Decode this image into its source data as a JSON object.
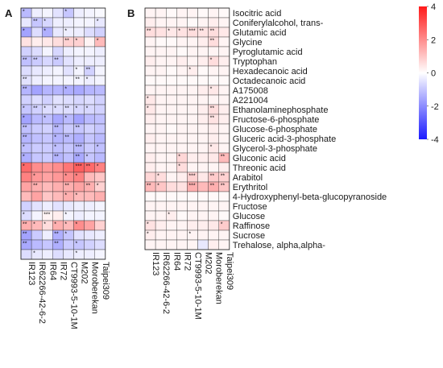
{
  "chart_data": [
    {
      "panel": "A",
      "type": "heatmap",
      "columns": [
        "IR123",
        "IR62266-42-6-2",
        "IR64",
        "IR72",
        "CT9993-5-10-1M",
        "M202",
        "Moroberekan",
        "Taipei309"
      ],
      "values": [
        [
          -1.2,
          -0.3,
          -0.2,
          -0.5,
          -1.0,
          -0.3,
          -0.2,
          -0.1
        ],
        [
          -0.4,
          -1.0,
          -0.7,
          -0.3,
          -0.3,
          -0.2,
          -0.2,
          -0.4
        ],
        [
          -1.6,
          -0.6,
          -1.4,
          -0.4,
          -0.3,
          -0.3,
          -0.6,
          -0.8
        ],
        [
          0.5,
          0.3,
          0.4,
          0.6,
          0.8,
          0.8,
          0.2,
          1.2
        ],
        [
          -0.8,
          -0.6,
          -0.2,
          -0.7,
          -0.3,
          -0.2,
          -0.2,
          -0.3
        ],
        [
          -1.1,
          -0.9,
          -0.7,
          -0.9,
          -0.5,
          -0.3,
          -0.3,
          -0.3
        ],
        [
          -0.6,
          -0.4,
          -0.3,
          -0.2,
          -0.5,
          -0.2,
          -0.8,
          -0.2
        ],
        [
          -0.5,
          -0.3,
          -0.2,
          -0.2,
          -0.2,
          -0.2,
          -0.3,
          -0.2
        ],
        [
          -1.3,
          -1.6,
          -1.3,
          -1.3,
          -1.4,
          -1.5,
          -1.3,
          -1.2
        ],
        [
          -0.8,
          -0.6,
          -0.8,
          -0.5,
          -0.6,
          -0.7,
          -0.6,
          -0.8
        ],
        [
          -1.0,
          -0.8,
          -0.6,
          -0.6,
          -0.6,
          -0.7,
          -0.7,
          -0.8
        ],
        [
          -1.6,
          -1.2,
          -1.1,
          -1.5,
          -1.2,
          -1.6,
          -1.2,
          -1.1
        ],
        [
          -1.1,
          -0.9,
          -0.8,
          -1.2,
          -0.9,
          -1.0,
          -0.8,
          -1.0
        ],
        [
          -1.3,
          -1.1,
          -1.0,
          -1.3,
          -1.2,
          -1.4,
          -1.0,
          -1.2
        ],
        [
          -1.1,
          -0.9,
          -0.9,
          -1.1,
          -1.0,
          -1.2,
          -0.9,
          -1.1
        ],
        [
          -1.4,
          -1.0,
          -0.9,
          -1.3,
          -1.1,
          -1.5,
          -1.0,
          -1.2
        ],
        [
          2.6,
          2.0,
          1.8,
          2.0,
          2.4,
          2.8,
          2.6,
          2.2
        ],
        [
          2.2,
          1.8,
          1.6,
          1.8,
          2.0,
          2.2,
          1.2,
          1.0
        ],
        [
          1.6,
          1.4,
          1.2,
          1.4,
          1.4,
          1.6,
          1.4,
          0.8
        ],
        [
          1.2,
          1.6,
          1.0,
          1.2,
          1.4,
          1.2,
          1.2,
          1.4
        ],
        [
          -0.8,
          -0.5,
          -0.3,
          -0.5,
          -0.4,
          -0.3,
          -0.3,
          -0.2
        ],
        [
          -0.6,
          -0.2,
          0.2,
          0.3,
          -0.2,
          -0.3,
          -0.2,
          -0.2
        ],
        [
          1.4,
          1.2,
          0.6,
          1.4,
          1.2,
          2.0,
          1.6,
          0.8
        ],
        [
          -1.6,
          -0.9,
          -0.3,
          -1.4,
          -1.0,
          -0.5,
          -0.4,
          -0.3
        ],
        [
          -1.5,
          -1.2,
          -1.0,
          -1.4,
          -0.9,
          -1.0,
          -0.8,
          -0.6
        ],
        [
          -0.6,
          -0.4,
          -0.3,
          -0.6,
          -0.4,
          -0.3,
          -0.3,
          -0.2
        ]
      ],
      "stars": [
        [
          "*",
          "",
          "",
          "",
          "*",
          "",
          "",
          ""
        ],
        [
          "",
          "**",
          "*",
          "",
          "",
          "",
          "",
          "*"
        ],
        [
          "*",
          "",
          "*",
          "",
          "*",
          "",
          "",
          ""
        ],
        [
          "",
          "",
          "",
          "",
          "**",
          "*",
          "",
          "*"
        ],
        [
          "",
          "",
          "",
          "",
          "",
          "",
          "",
          ""
        ],
        [
          "**",
          "**",
          "",
          "**",
          "",
          "",
          "",
          ""
        ],
        [
          "",
          "",
          "",
          "",
          "",
          "*",
          "**",
          ""
        ],
        [
          "**",
          "",
          "",
          "",
          "",
          "**",
          "*",
          ""
        ],
        [
          "**",
          "",
          "",
          "",
          "*",
          "",
          "",
          ""
        ],
        [
          "",
          "",
          "",
          "",
          "",
          "",
          "",
          ""
        ],
        [
          "*",
          "**",
          "*",
          "*",
          "**",
          "*",
          "*",
          ""
        ],
        [
          "*",
          "",
          "*",
          "",
          "*",
          "",
          "",
          ""
        ],
        [
          "**",
          "",
          "",
          "**",
          "",
          "**",
          "",
          ""
        ],
        [
          "**",
          "",
          "",
          "*",
          "**",
          "",
          "",
          ""
        ],
        [
          "*",
          "",
          "",
          "*",
          "",
          "***",
          "",
          "*"
        ],
        [
          "*",
          "",
          "",
          "**",
          "",
          "**",
          "*",
          ""
        ],
        [
          "*",
          "",
          "",
          "",
          "",
          "***",
          "**",
          "*"
        ],
        [
          "",
          "*",
          "",
          "",
          "*",
          "*",
          "",
          ""
        ],
        [
          "",
          "**",
          "",
          "",
          "**",
          "",
          "**",
          "*"
        ],
        [
          "",
          "",
          "",
          "",
          "*",
          "*",
          "",
          ""
        ],
        [
          "",
          "",
          "",
          "",
          "",
          "",
          "",
          ""
        ],
        [
          "*",
          "",
          "***",
          "",
          "*",
          "",
          "",
          ""
        ],
        [
          "**",
          "*",
          "*",
          "*",
          "*",
          "*",
          "",
          ""
        ],
        [
          "**",
          "",
          "",
          "**",
          "*",
          "",
          "",
          ""
        ],
        [
          "**",
          "",
          "",
          "**",
          "",
          "*",
          "",
          ""
        ],
        [
          "",
          "*",
          "",
          "",
          "",
          "*",
          "",
          ""
        ]
      ]
    },
    {
      "panel": "B",
      "type": "heatmap",
      "columns": [
        "IR123",
        "IR62266-42-6-2",
        "IR64",
        "IR72",
        "CT9993-5-10-1M",
        "M202",
        "Moroberekan",
        "Taipei309"
      ],
      "rows": [
        "Isocitric acid",
        "Coniferylalcohol, trans-",
        "Glutamic acid",
        "Glycine",
        "Pyroglutamic acid",
        "Tryptophan",
        "Hexadecanoic acid",
        "Octadecanoic acid",
        "A175008",
        "A221004",
        "Ethanolaminephosphate",
        "Fructose-6-phosphate",
        "Glucose-6-phosphate",
        "Gluceric acid-3-phosphate",
        "Glycerol-3-phosphate",
        "Gluconic acid",
        "Threonic acid",
        "Arabitol",
        "Erythritol",
        "4-Hydroxyphenyl-beta-glucopyranoside",
        "Fructose",
        "Glucose",
        "Raffinose",
        "Sucrose",
        "Trehalose, alpha,alpha-"
      ],
      "values": [
        [
          0.2,
          0.2,
          0.1,
          0.2,
          0.2,
          0.1,
          0.2,
          0.1
        ],
        [
          0.3,
          0.2,
          0.2,
          0.2,
          0.1,
          0.2,
          0.3,
          0.2
        ],
        [
          0.6,
          0.5,
          0.4,
          0.5,
          0.6,
          0.5,
          0.6,
          0.4
        ],
        [
          0.2,
          0.1,
          0.1,
          0.2,
          0.2,
          0.3,
          0.6,
          0.2
        ],
        [
          0.2,
          0.2,
          0.2,
          0.1,
          0.2,
          0.2,
          0.2,
          0.2
        ],
        [
          0.3,
          0.2,
          0.2,
          0.3,
          0.2,
          0.3,
          0.6,
          0.3
        ],
        [
          0.2,
          0.2,
          0.1,
          0.2,
          0.3,
          0.1,
          0.2,
          0.2
        ],
        [
          0.1,
          0.1,
          0.1,
          0.1,
          0.1,
          0.1,
          0.1,
          0.1
        ],
        [
          0.2,
          0.2,
          0.2,
          0.2,
          0.2,
          0.3,
          0.4,
          0.2
        ],
        [
          0.4,
          0.2,
          0.2,
          0.2,
          0.2,
          0.2,
          0.2,
          0.2
        ],
        [
          0.4,
          0.2,
          0.2,
          0.2,
          0.2,
          0.3,
          0.6,
          0.3
        ],
        [
          0.3,
          0.2,
          0.2,
          0.2,
          0.2,
          0.3,
          0.5,
          0.3
        ],
        [
          0.2,
          0.2,
          0.1,
          0.2,
          0.2,
          0.2,
          0.3,
          0.2
        ],
        [
          0.3,
          0.2,
          0.2,
          0.2,
          0.2,
          0.2,
          0.3,
          0.2
        ],
        [
          0.2,
          0.2,
          0.2,
          0.2,
          0.2,
          0.2,
          0.4,
          0.2
        ],
        [
          0.3,
          0.2,
          0.2,
          0.7,
          0.3,
          0.3,
          0.4,
          1.2
        ],
        [
          0.3,
          0.2,
          0.2,
          0.6,
          0.2,
          0.2,
          0.2,
          0.3
        ],
        [
          0.7,
          0.6,
          0.2,
          0.3,
          0.8,
          0.4,
          0.9,
          0.8
        ],
        [
          1.2,
          1.0,
          0.6,
          0.5,
          1.4,
          1.2,
          1.4,
          1.0
        ],
        [
          0.1,
          0.1,
          0.1,
          0.1,
          0.1,
          0.1,
          0.1,
          0.1
        ],
        [
          0.2,
          0.2,
          0.2,
          0.2,
          0.2,
          0.2,
          0.2,
          0.2
        ],
        [
          0.2,
          0.2,
          0.3,
          0.1,
          0.2,
          0.2,
          0.2,
          0.1
        ],
        [
          0.5,
          0.3,
          0.2,
          0.2,
          0.3,
          0.3,
          0.4,
          0.9
        ],
        [
          0.3,
          0.2,
          0.2,
          0.2,
          0.2,
          0.2,
          0.2,
          0.2
        ],
        [
          0.2,
          0.2,
          0.2,
          0.2,
          0.2,
          -0.4,
          0.3,
          0.2
        ]
      ],
      "stars": [
        [
          "",
          "",
          "",
          "",
          "",
          "",
          "",
          ""
        ],
        [
          "",
          "",
          "",
          "",
          "",
          "",
          "",
          ""
        ],
        [
          "**",
          "",
          "*",
          "*",
          "***",
          "**",
          "**",
          ""
        ],
        [
          "",
          "",
          "",
          "",
          "",
          "",
          "**",
          ""
        ],
        [
          "",
          "",
          "",
          "",
          "",
          "",
          "",
          ""
        ],
        [
          "",
          "",
          "",
          "",
          "",
          "",
          "*",
          ""
        ],
        [
          "",
          "",
          "",
          "",
          "*",
          "",
          "",
          ""
        ],
        [
          "",
          "",
          "",
          "",
          "",
          "",
          "",
          ""
        ],
        [
          "",
          "",
          "",
          "",
          "",
          "",
          "*",
          ""
        ],
        [
          "*",
          "",
          "",
          "",
          "",
          "",
          "",
          ""
        ],
        [
          "*",
          "",
          "",
          "",
          "",
          "",
          "**",
          ""
        ],
        [
          "",
          "",
          "",
          "",
          "",
          "",
          "**",
          ""
        ],
        [
          "",
          "",
          "",
          "",
          "",
          "",
          "",
          ""
        ],
        [
          "",
          "",
          "",
          "",
          "",
          "",
          "",
          ""
        ],
        [
          "",
          "",
          "",
          "",
          "",
          "",
          "*",
          ""
        ],
        [
          "",
          "",
          "",
          "*",
          "",
          "",
          "",
          "**"
        ],
        [
          "",
          "",
          "",
          "*",
          "",
          "",
          "",
          ""
        ],
        [
          "",
          "*",
          "",
          "",
          "***",
          "",
          "**",
          "**"
        ],
        [
          "**",
          "*",
          "",
          "",
          "***",
          "",
          "**",
          "**"
        ],
        [
          "",
          "",
          "",
          "",
          "",
          "",
          "",
          ""
        ],
        [
          "",
          "",
          "",
          "",
          "",
          "",
          "",
          ""
        ],
        [
          "",
          "",
          "*",
          "",
          "",
          "",
          "",
          ""
        ],
        [
          "*",
          "",
          "",
          "",
          "",
          "",
          "",
          "*"
        ],
        [
          "*",
          "",
          "",
          "",
          "*",
          "",
          "",
          ""
        ],
        [
          "",
          "",
          "",
          "",
          "",
          "",
          "",
          ""
        ]
      ]
    }
  ],
  "legend": {
    "ticks": [
      4,
      2,
      0,
      -2,
      -4
    ],
    "range": [
      -4,
      4
    ],
    "colors": {
      "low": "#1a1aff",
      "mid": "#ffffff",
      "high": "#ff1a1a"
    }
  }
}
